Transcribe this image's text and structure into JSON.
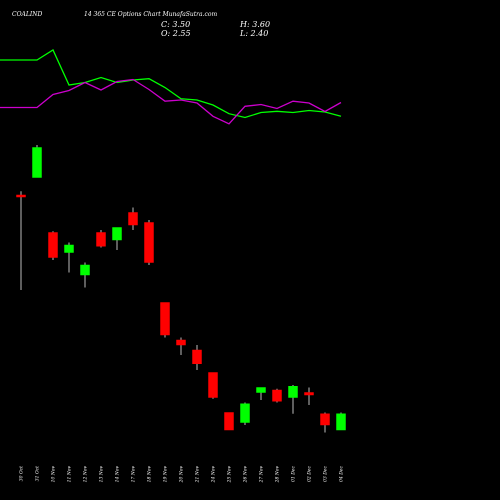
{
  "header": {
    "symbol": "COALIND",
    "title": "14 365 CE Options  Chart MunafaSutra.com",
    "close": "C: 3.50",
    "open": "O: 2.55",
    "high": "H: 3.60",
    "low": "L: 2.40"
  },
  "chart_data": {
    "type": "candlestick",
    "categories": [
      "30 Oct",
      "31 Oct",
      "10 Nov",
      "11 Nov",
      "12 Nov",
      "13 Nov",
      "14 Nov",
      "17 Nov",
      "18 Nov",
      "19 Nov",
      "20 Nov",
      "21 Nov",
      "24 Nov",
      "25 Nov",
      "26 Nov",
      "27 Nov",
      "28 Nov",
      "01 Dec",
      "02 Dec",
      "03 Dec",
      "04 Dec"
    ],
    "candles": [
      {
        "open": 13.1,
        "high": 13.25,
        "low": 9.3,
        "close": 13.05,
        "color": "red"
      },
      {
        "open": 13.8,
        "high": 15.1,
        "low": 13.8,
        "close": 15.0,
        "color": "green"
      },
      {
        "open": 11.6,
        "high": 11.65,
        "low": 10.5,
        "close": 10.6,
        "color": "red"
      },
      {
        "open": 10.8,
        "high": 11.2,
        "low": 10.0,
        "close": 11.1,
        "color": "green"
      },
      {
        "open": 9.9,
        "high": 10.4,
        "low": 9.4,
        "close": 10.3,
        "color": "green"
      },
      {
        "open": 11.6,
        "high": 11.7,
        "low": 11.0,
        "close": 11.05,
        "color": "red"
      },
      {
        "open": 11.3,
        "high": 11.8,
        "low": 10.9,
        "close": 11.8,
        "color": "green"
      },
      {
        "open": 12.4,
        "high": 12.6,
        "low": 11.7,
        "close": 11.9,
        "color": "red"
      },
      {
        "open": 12.0,
        "high": 12.1,
        "low": 10.3,
        "close": 10.4,
        "color": "red"
      },
      {
        "open": 8.8,
        "high": 8.8,
        "low": 7.4,
        "close": 7.5,
        "color": "red"
      },
      {
        "open": 7.3,
        "high": 7.4,
        "low": 6.7,
        "close": 7.1,
        "color": "red"
      },
      {
        "open": 6.9,
        "high": 7.1,
        "low": 6.1,
        "close": 6.35,
        "color": "red"
      },
      {
        "open": 6.0,
        "high": 6.0,
        "low": 4.95,
        "close": 5.0,
        "color": "red"
      },
      {
        "open": 4.4,
        "high": 4.4,
        "low": 3.7,
        "close": 3.7,
        "color": "red"
      },
      {
        "open": 4.0,
        "high": 4.8,
        "low": 3.9,
        "close": 4.75,
        "color": "green"
      },
      {
        "open": 5.2,
        "high": 5.4,
        "low": 4.9,
        "close": 5.4,
        "color": "green"
      },
      {
        "open": 5.3,
        "high": 5.35,
        "low": 4.8,
        "close": 4.85,
        "color": "red"
      },
      {
        "open": 5.0,
        "high": 5.5,
        "low": 4.35,
        "close": 5.45,
        "color": "green"
      },
      {
        "open": 5.2,
        "high": 5.4,
        "low": 4.7,
        "close": 5.1,
        "color": "red"
      },
      {
        "open": 4.35,
        "high": 4.4,
        "low": 3.6,
        "close": 3.9,
        "color": "red"
      },
      {
        "open": 3.7,
        "high": 4.4,
        "low": 3.7,
        "close": 4.35,
        "color": "green"
      }
    ],
    "line_green": [
      18.5,
      18.5,
      18.9,
      17.5,
      17.6,
      17.8,
      17.6,
      17.7,
      17.75,
      17.4,
      16.95,
      16.9,
      16.7,
      16.35,
      16.2,
      16.4,
      16.45,
      16.4,
      16.48,
      16.42,
      16.25
    ],
    "line_magenta": [
      16.6,
      16.6,
      17.12,
      17.28,
      17.6,
      17.3,
      17.64,
      17.72,
      17.32,
      16.85,
      16.9,
      16.78,
      16.25,
      15.95,
      16.65,
      16.72,
      16.56,
      16.85,
      16.78,
      16.44,
      16.8
    ],
    "colors": {
      "up": "#00ff00",
      "down": "#ff0000",
      "line1": "#00ff00",
      "line2": "#cc00cc",
      "background": "#000000"
    }
  }
}
